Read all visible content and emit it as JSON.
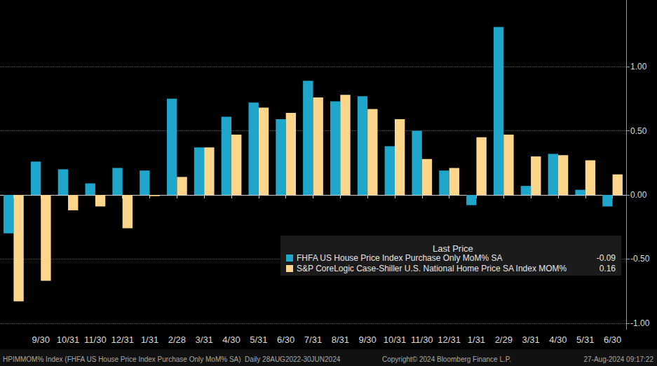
{
  "chart_data": {
    "type": "bar",
    "categories": [
      null,
      "9/30",
      "10/31",
      "11/30",
      "12/31",
      "1/31",
      "2/28",
      "3/31",
      "4/30",
      "5/31",
      "6/30",
      "7/31",
      "8/31",
      "9/30",
      "10/31",
      "11/30",
      "12/31",
      "1/31",
      "2/29",
      "3/31",
      "4/30",
      "5/31",
      "6/30"
    ],
    "series": [
      {
        "name": "FHFA US House Price Index Purchase Only MoM% SA",
        "color": "#1ea7cb",
        "last_price": -0.09,
        "values": [
          -0.3,
          0.26,
          0.2,
          0.09,
          0.21,
          0.19,
          0.75,
          0.37,
          0.61,
          0.72,
          0.59,
          0.89,
          0.73,
          0.77,
          0.38,
          0.5,
          0.19,
          -0.08,
          1.31,
          0.07,
          0.32,
          0.04,
          -0.09
        ]
      },
      {
        "name": "S&P CoreLogic Case-Shiller U.S. National Home Price SA Index MOM%",
        "color": "#fdd68c",
        "last_price": 0.16,
        "values": [
          -0.83,
          -0.67,
          -0.12,
          -0.09,
          -0.26,
          -0.01,
          0.14,
          0.37,
          0.47,
          0.68,
          0.64,
          0.76,
          0.78,
          0.67,
          0.59,
          0.28,
          0.21,
          0.45,
          0.47,
          0.3,
          0.31,
          0.27,
          0.16
        ]
      }
    ],
    "legend_title": "Last Price",
    "ylim": [
      -1.05,
      1.52
    ],
    "yticks": [
      {
        "value": -1,
        "label": "-1.00"
      },
      {
        "value": -0.5,
        "label": "-0.50"
      },
      {
        "value": 0,
        "label": "0.00"
      },
      {
        "value": 0.5,
        "label": "0.50"
      },
      {
        "value": 1,
        "label": "1.00"
      }
    ],
    "grid": true,
    "legend": "bottom-right",
    "footer": [
      "HPIMMOM% Index (FHFA US House Price Index Purchase Only MoM% SA)  Daily 28AUG2022-30JUN2024",
      "Copyright© 2024 Bloomberg Finance L.P.",
      "27-Aug-2024 09:17:22"
    ]
  }
}
